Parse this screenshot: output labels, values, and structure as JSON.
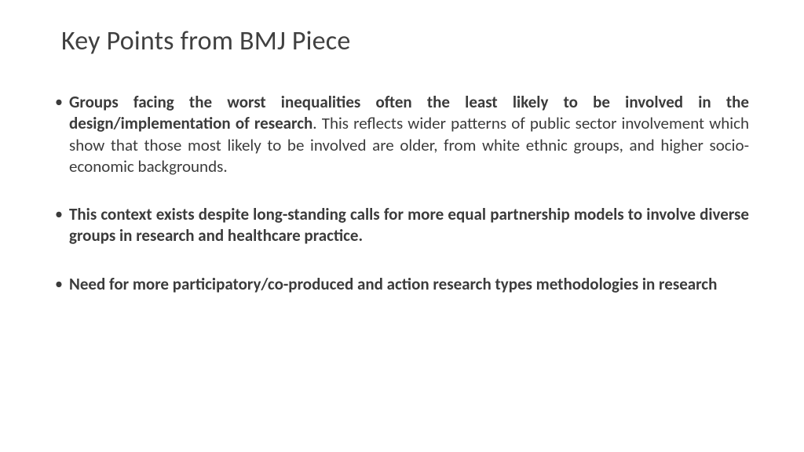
{
  "title": "Key Points from BMJ Piece",
  "bullets": [
    {
      "bold": "Groups facing the worst inequalities often the least likely to be involved in the design/implementation of research",
      "rest": ". This reflects wider patterns of public sector involvement which show that those most likely to be involved are older, from white ethnic groups, and higher socio-economic backgrounds."
    },
    {
      "bold": "This context exists despite long-standing calls for more equal partnership models to involve diverse groups in research and healthcare practice.",
      "rest": ""
    },
    {
      "bold": "Need for more participatory/co-produced and action research types methodologies in research",
      "rest": ""
    }
  ],
  "style": {
    "background_color": "#ffffff",
    "title_color": "#404040",
    "text_color": "#3b3b3b",
    "title_fontsize": 34,
    "body_fontsize": 21,
    "font_family": "Calibri"
  }
}
